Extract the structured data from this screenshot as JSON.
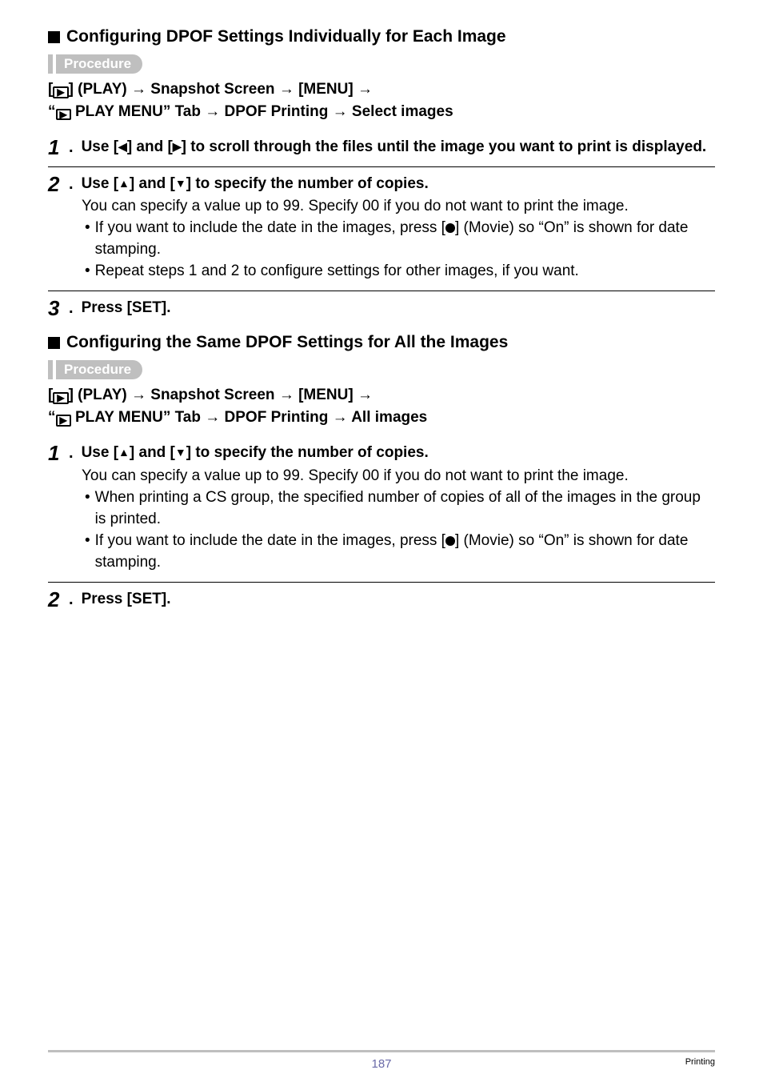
{
  "section1": {
    "heading": "Configuring DPOF Settings Individually for Each Image",
    "procedure_label": "Procedure",
    "path_line1_a": "[",
    "path_line1_b": "] (PLAY) ",
    "path_arrow": "→",
    "path_line1_c": " Snapshot Screen ",
    "path_line1_d": " [MENU] ",
    "path_line2_a": "“",
    "path_line2_b": " PLAY MENU” Tab ",
    "path_line2_c": " DPOF Printing ",
    "path_line2_d": " Select images",
    "step1_num": "1",
    "step1_dot": ".",
    "step1_text_a": "Use [",
    "step1_text_b": "] and [",
    "step1_text_c": "] to scroll through the files until the image you want to print is displayed.",
    "step2_num": "2",
    "step2_dot": ".",
    "step2_text_a": "Use [",
    "step2_text_b": "] and [",
    "step2_text_c": "] to specify the number of copies.",
    "step2_body": "You can specify a value up to 99. Specify 00 if you do not want to print the image.",
    "step2_bullet1_a": "If you want to include the date in the images, press [",
    "step2_bullet1_b": "] (Movie) so “On” is shown for date stamping.",
    "step2_bullet2": "Repeat steps 1 and 2 to configure settings for other images, if you want.",
    "step3_num": "3",
    "step3_dot": ".",
    "step3_text": "Press [SET]."
  },
  "section2": {
    "heading": "Configuring the Same DPOF Settings for All the Images",
    "procedure_label": "Procedure",
    "path_line2_d": " All images",
    "step1_num": "1",
    "step1_dot": ".",
    "step1_text_a": "Use [",
    "step1_text_b": "] and [",
    "step1_text_c": "] to specify the number of copies.",
    "step1_body": "You can specify a value up to 99. Specify 00 if you do not want to print the image.",
    "step1_bullet1": "When printing a CS group, the specified number of copies of all of the images in the group is printed.",
    "step1_bullet2_a": "If you want to include the date in the images, press [",
    "step1_bullet2_b": "] (Movie) so “On” is shown for date stamping.",
    "step2_num": "2",
    "step2_dot": ".",
    "step2_text": "Press [SET]."
  },
  "footer": {
    "page_num": "187",
    "category": "Printing"
  },
  "icons": {
    "tri_left": "◀",
    "tri_right": "▶",
    "tri_up": "▲",
    "tri_down": "▼",
    "play_inner": "▶"
  }
}
